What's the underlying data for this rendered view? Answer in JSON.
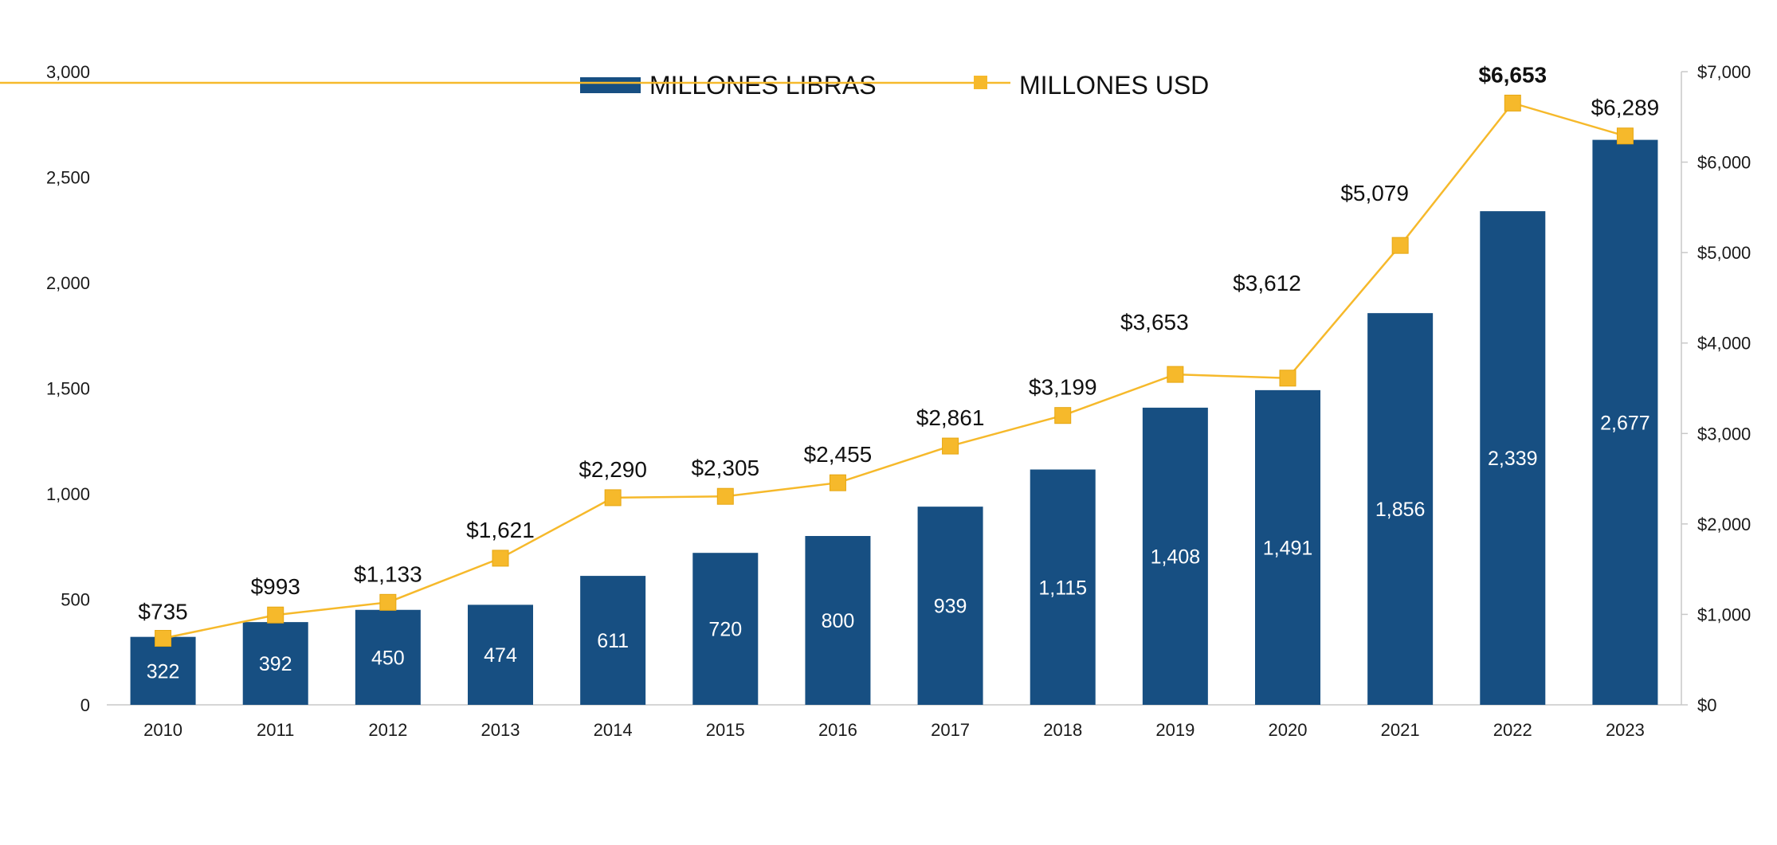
{
  "chart_data": {
    "type": "bar",
    "title": "",
    "xlabel": "",
    "ylabel": "",
    "y2label": "",
    "categories": [
      "2010",
      "2011",
      "2012",
      "2013",
      "2014",
      "2015",
      "2016",
      "2017",
      "2018",
      "2019",
      "2020",
      "2021",
      "2022",
      "2023"
    ],
    "ylim": [
      0,
      3000
    ],
    "y2lim": [
      0,
      7000
    ],
    "y_ticks": [
      "0",
      "500",
      "1,000",
      "1,500",
      "2,000",
      "2,500",
      "3,000"
    ],
    "y_tick_values": [
      0,
      500,
      1000,
      1500,
      2000,
      2500,
      3000
    ],
    "y2_ticks": [
      "$0",
      "$1,000",
      "$2,000",
      "$3,000",
      "$4,000",
      "$5,000",
      "$6,000",
      "$7,000"
    ],
    "y2_tick_values": [
      0,
      1000,
      2000,
      3000,
      4000,
      5000,
      6000,
      7000
    ],
    "legend_position": "top-center",
    "grid": false,
    "series": [
      {
        "name": "MILLONES LIBRAS",
        "kind": "bar",
        "axis": "left",
        "color": "#174f82",
        "values": [
          322,
          392,
          450,
          474,
          611,
          720,
          800,
          939,
          1115,
          1408,
          1491,
          1856,
          2339,
          2677
        ],
        "labels": [
          "322",
          "392",
          "450",
          "474",
          "611",
          "720",
          "800",
          "939",
          "1,115",
          "1,408",
          "1,491",
          "1,856",
          "2,339",
          "2,677"
        ]
      },
      {
        "name": "MILLONES USD",
        "kind": "line",
        "axis": "right",
        "color": "#f6b92b",
        "values": [
          735,
          993,
          1133,
          1621,
          2290,
          2305,
          2455,
          2861,
          3199,
          3653,
          3612,
          5079,
          6653,
          6289
        ],
        "labels": [
          "$735",
          "$993",
          "$1,133",
          "$1,621",
          "$2,290",
          "$2,305",
          "$2,455",
          "$2,861",
          "$3,199",
          "$3,653",
          "$3,612",
          "$5,079",
          "$6,653",
          "$6,289"
        ],
        "bold_label_index": 12
      }
    ]
  }
}
